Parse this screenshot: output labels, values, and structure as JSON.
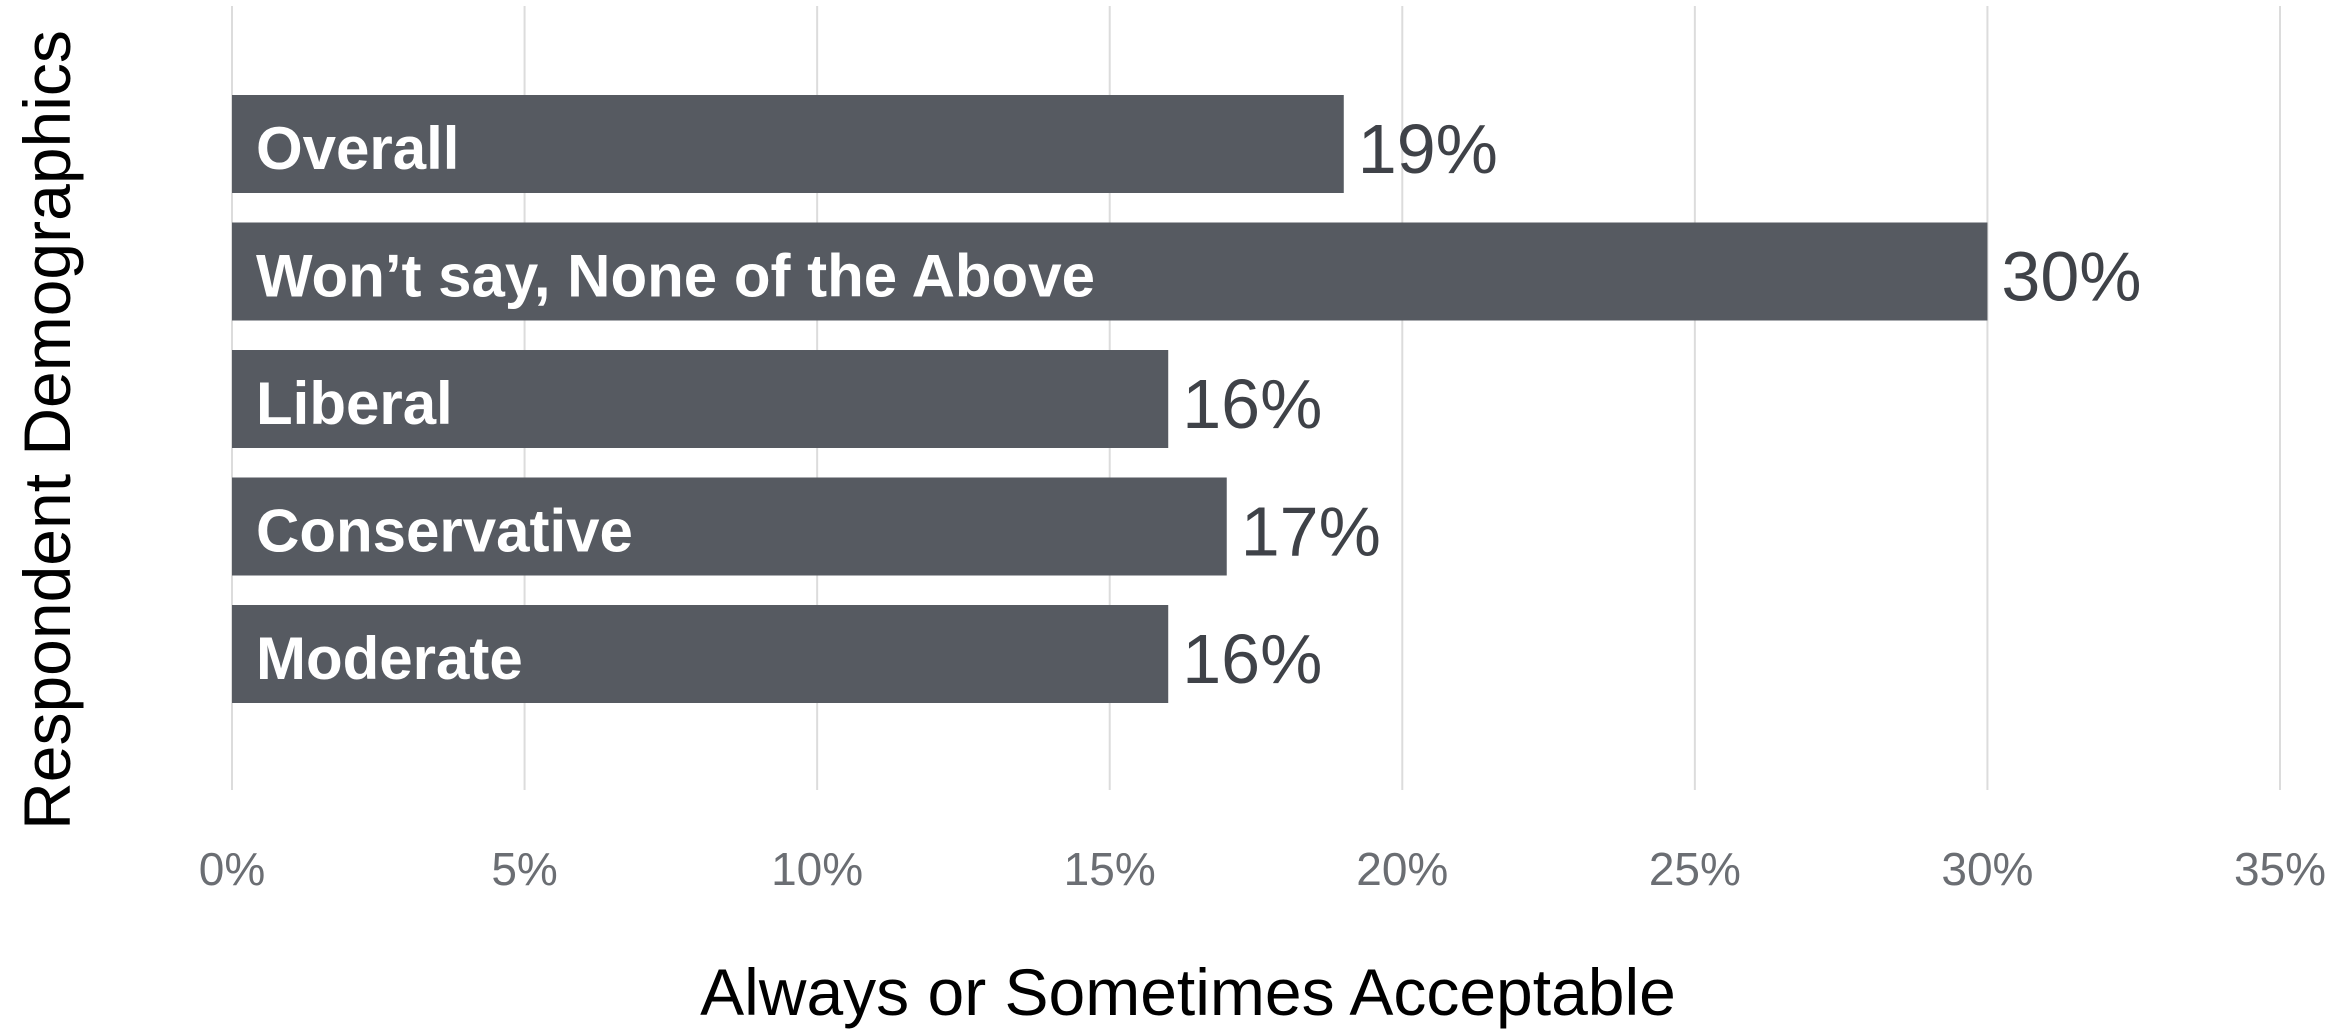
{
  "chart_data": {
    "type": "bar",
    "orientation": "horizontal",
    "categories": [
      "Overall",
      "Won’t say, None of the Above",
      "Liberal",
      "Conservative",
      "Moderate"
    ],
    "values": [
      19,
      30,
      16,
      17,
      16
    ],
    "value_labels": [
      "19%",
      "30%",
      "16%",
      "17%",
      "16%"
    ],
    "xlim": [
      0,
      35
    ],
    "xticks": [
      0,
      5,
      10,
      15,
      20,
      25,
      30,
      35
    ],
    "xtick_labels": [
      "0%",
      "5%",
      "10%",
      "15%",
      "20%",
      "25%",
      "30%",
      "35%"
    ],
    "xlabel": "Always or Sometimes Acceptable",
    "ylabel": "Respondent Demographics",
    "grid": "vertical",
    "colors": {
      "bar": "#565a61",
      "bar_text": "#ffffff",
      "value_text": "#3f4248",
      "tick_text": "#6b6e73",
      "grid": "#dcdcdc"
    }
  }
}
